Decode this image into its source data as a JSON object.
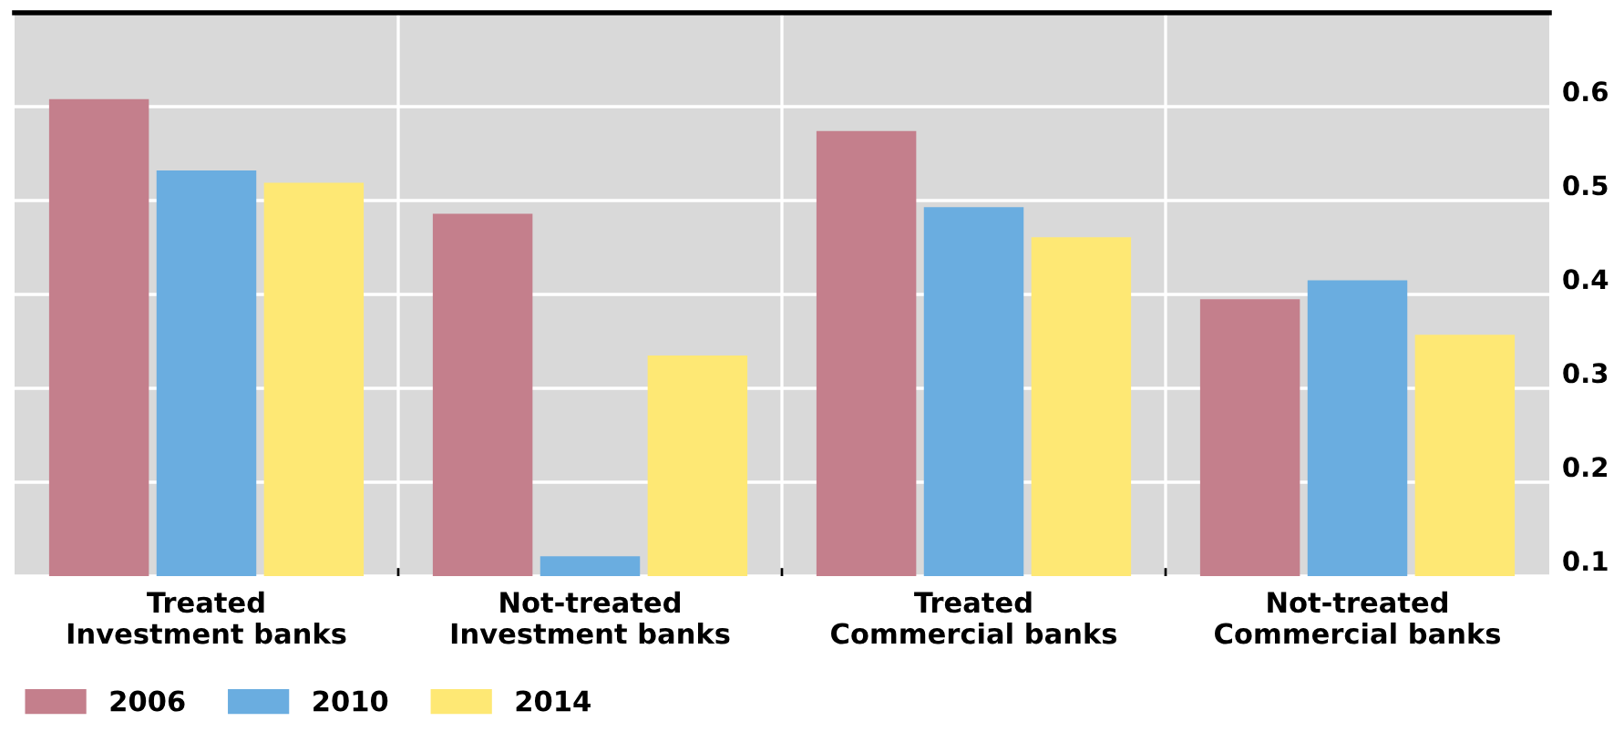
{
  "chart_data": {
    "type": "bar",
    "categories": [
      "Treated\nInvestment banks",
      "Not-treated\nInvestment banks",
      "Treated\nCommercial banks",
      "Not-treated\nCommercial banks"
    ],
    "series": [
      {
        "name": "2006",
        "color": "#c47f8c",
        "values": [
          0.608,
          0.486,
          0.574,
          0.395
        ]
      },
      {
        "name": "2010",
        "color": "#6aade0",
        "values": [
          0.532,
          0.121,
          0.493,
          0.415
        ]
      },
      {
        "name": "2014",
        "color": "#fee874",
        "values": [
          0.519,
          0.335,
          0.461,
          0.357
        ]
      }
    ],
    "ylim": [
      0.1,
      0.7
    ],
    "yticks": [
      0.1,
      0.2,
      0.3,
      0.4,
      0.5,
      0.6
    ],
    "grid": true,
    "legend": "bottom left"
  }
}
